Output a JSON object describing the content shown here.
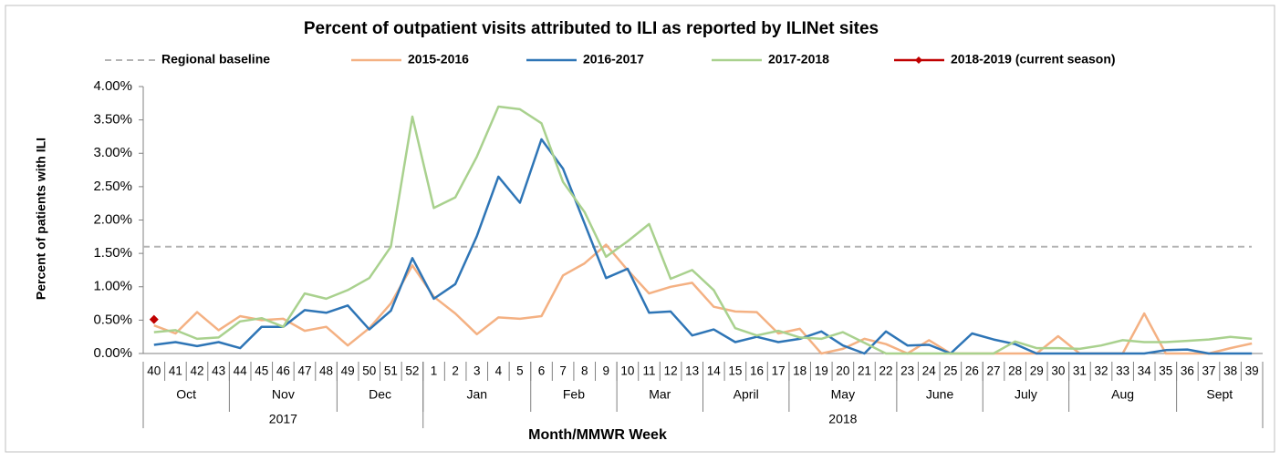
{
  "chart_data": {
    "type": "line",
    "title": "Percent of outpatient visits attributed to ILI as reported by ILINet sites",
    "ylabel": "Percent of patients with ILI",
    "xlabel": "Month/MMWR Week",
    "categories": [
      "40",
      "41",
      "42",
      "43",
      "44",
      "45",
      "46",
      "47",
      "48",
      "49",
      "50",
      "51",
      "52",
      "1",
      "2",
      "3",
      "4",
      "5",
      "6",
      "7",
      "8",
      "9",
      "10",
      "11",
      "12",
      "13",
      "14",
      "15",
      "16",
      "17",
      "18",
      "19",
      "20",
      "21",
      "22",
      "23",
      "24",
      "25",
      "26",
      "27",
      "28",
      "29",
      "30",
      "31",
      "32",
      "33",
      "34",
      "35",
      "36",
      "37",
      "38",
      "39"
    ],
    "months": [
      {
        "label": "Oct",
        "span": 4
      },
      {
        "label": "Nov",
        "span": 5
      },
      {
        "label": "Dec",
        "span": 4
      },
      {
        "label": "Jan",
        "span": 5
      },
      {
        "label": "Feb",
        "span": 4
      },
      {
        "label": "Mar",
        "span": 4
      },
      {
        "label": "April",
        "span": 4
      },
      {
        "label": "May",
        "span": 5
      },
      {
        "label": "June",
        "span": 4
      },
      {
        "label": "July",
        "span": 4
      },
      {
        "label": "Aug",
        "span": 5
      },
      {
        "label": "Sept",
        "span": 4
      }
    ],
    "years": [
      {
        "label": "2017",
        "span": 13
      },
      {
        "label": "2018",
        "span": 39
      }
    ],
    "baseline": {
      "name": "Regional baseline",
      "value": 1.6,
      "color": "#b3b3b3"
    },
    "series": [
      {
        "name": "2015-2016",
        "color": "#f4b183",
        "values": [
          0.42,
          0.3,
          0.62,
          0.35,
          0.56,
          0.5,
          0.52,
          0.34,
          0.4,
          0.12,
          0.38,
          0.75,
          1.32,
          0.85,
          0.6,
          0.29,
          0.54,
          0.52,
          0.56,
          1.17,
          1.35,
          1.63,
          1.25,
          0.9,
          1.0,
          1.06,
          0.7,
          0.63,
          0.62,
          0.3,
          0.37,
          0.0,
          0.07,
          0.22,
          0.14,
          0.0,
          0.2,
          0.0,
          0.0,
          0.0,
          0.0,
          0.0,
          0.26,
          0.0,
          0.0,
          0.0,
          0.6,
          0.0,
          0.0,
          0.0,
          0.08,
          0.15
        ]
      },
      {
        "name": "2016-2017",
        "color": "#2e75b6",
        "values": [
          0.13,
          0.17,
          0.11,
          0.17,
          0.08,
          0.4,
          0.4,
          0.65,
          0.61,
          0.72,
          0.36,
          0.64,
          1.43,
          0.82,
          1.04,
          1.76,
          2.65,
          2.26,
          3.21,
          2.77,
          1.95,
          1.13,
          1.27,
          0.61,
          0.63,
          0.27,
          0.36,
          0.17,
          0.25,
          0.17,
          0.22,
          0.33,
          0.12,
          0.0,
          0.33,
          0.12,
          0.13,
          0.0,
          0.3,
          0.21,
          0.14,
          0.0,
          0.0,
          0.0,
          0.0,
          0.0,
          0.0,
          0.05,
          0.06,
          0.0,
          0.0,
          0.0
        ]
      },
      {
        "name": "2017-2018",
        "color": "#a9d18e",
        "values": [
          0.32,
          0.35,
          0.22,
          0.24,
          0.48,
          0.53,
          0.4,
          0.9,
          0.82,
          0.95,
          1.13,
          1.6,
          3.55,
          2.18,
          2.34,
          2.95,
          3.7,
          3.66,
          3.45,
          2.57,
          2.12,
          1.45,
          1.68,
          1.94,
          1.12,
          1.25,
          0.95,
          0.38,
          0.27,
          0.34,
          0.24,
          0.22,
          0.32,
          0.16,
          0.0,
          0.0,
          0.0,
          0.0,
          0.0,
          0.0,
          0.18,
          0.08,
          0.08,
          0.07,
          0.12,
          0.2,
          0.17,
          0.17,
          0.19,
          0.21,
          0.25,
          0.22
        ]
      },
      {
        "name": "2018-2019 (current season)",
        "color": "#c00000",
        "marker": "diamond",
        "values": [
          0.51,
          null,
          null,
          null,
          null,
          null,
          null,
          null,
          null,
          null,
          null,
          null,
          null,
          null,
          null,
          null,
          null,
          null,
          null,
          null,
          null,
          null,
          null,
          null,
          null,
          null,
          null,
          null,
          null,
          null,
          null,
          null,
          null,
          null,
          null,
          null,
          null,
          null,
          null,
          null,
          null,
          null,
          null,
          null,
          null,
          null,
          null,
          null,
          null,
          null,
          null,
          null
        ]
      }
    ],
    "ylim": [
      0,
      4
    ],
    "yticks": [
      {
        "value": 0,
        "label": "0.00%"
      },
      {
        "value": 0.5,
        "label": "0.50%"
      },
      {
        "value": 1,
        "label": "1.00%"
      },
      {
        "value": 1.5,
        "label": "1.50%"
      },
      {
        "value": 2,
        "label": "2.00%"
      },
      {
        "value": 2.5,
        "label": "2.50%"
      },
      {
        "value": 3,
        "label": "3.00%"
      },
      {
        "value": 3.5,
        "label": "3.50%"
      },
      {
        "value": 4,
        "label": "4.00%"
      }
    ],
    "legend": "top"
  }
}
